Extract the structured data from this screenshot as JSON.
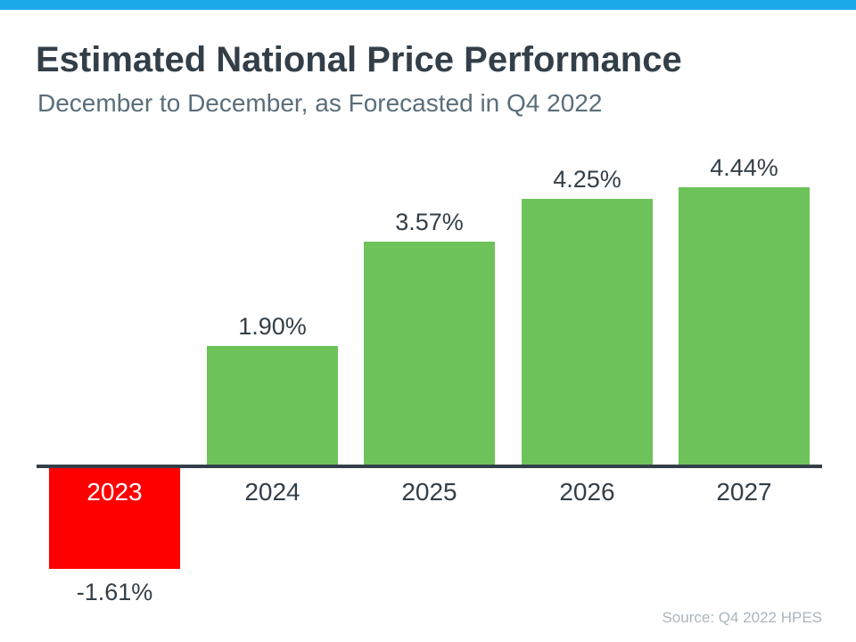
{
  "header": {
    "title": "Estimated National Price Performance",
    "subtitle": "December to December, as Forecasted in Q4 2022"
  },
  "chart_data": {
    "type": "bar",
    "categories": [
      "2023",
      "2024",
      "2025",
      "2026",
      "2027"
    ],
    "values": [
      -1.61,
      1.9,
      3.57,
      4.25,
      4.44
    ],
    "value_labels": [
      "-1.61%",
      "1.90%",
      "3.57%",
      "4.25%",
      "4.44%"
    ],
    "title": "Estimated National Price Performance",
    "subtitle": "December to December, as Forecasted in Q4 2022",
    "xlabel": "",
    "ylabel": "",
    "ylim": [
      -2,
      5
    ],
    "grid": false,
    "legend": false,
    "baseline": 0,
    "bar_color_positive": "#6EC25A",
    "bar_color_negative": "#FF0000",
    "annotation": "Source: Q4 2022 HPES"
  },
  "footer": {
    "source": "Source: Q4 2022 HPES"
  },
  "colors": {
    "accent_top_bar": "#1BA9EC",
    "title_text": "#333F48",
    "subtitle_text": "#5A6E7A",
    "axis_line": "#333F48",
    "value_label_text": "#333F48",
    "category_label_text": "#333F48",
    "category_label_on_negative": "#FFFFFF",
    "positive_bar": "#6EC25A",
    "negative_bar": "#FF0000",
    "source_text": "#A9B6BE"
  }
}
